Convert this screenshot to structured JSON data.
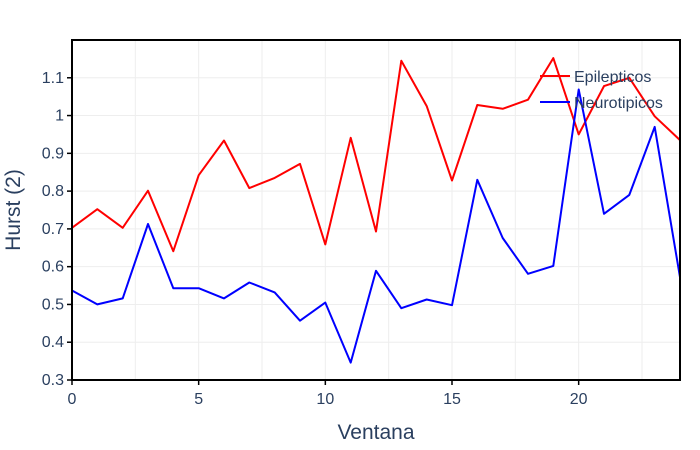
{
  "chart_data": {
    "type": "line",
    "title": "",
    "xlabel": "Ventana",
    "ylabel": "Hurst (2)",
    "xlim": [
      0,
      24
    ],
    "ylim": [
      0.3,
      1.2
    ],
    "xticks": [
      0,
      5,
      10,
      15,
      20
    ],
    "yticks": [
      0.3,
      0.4,
      0.5,
      0.6,
      0.7,
      0.8,
      0.9,
      1,
      1.1
    ],
    "grid": true,
    "legend_position": "top-right",
    "x": [
      0,
      1,
      2,
      3,
      4,
      5,
      6,
      7,
      8,
      9,
      10,
      11,
      12,
      13,
      14,
      15,
      16,
      17,
      18,
      19,
      20,
      21,
      22,
      23,
      24
    ],
    "series": [
      {
        "name": "Epilepticos",
        "color": "#ff0000",
        "values": [
          0.703,
          0.752,
          0.703,
          0.801,
          0.641,
          0.842,
          0.934,
          0.808,
          0.835,
          0.872,
          0.659,
          0.941,
          0.693,
          1.145,
          1.025,
          0.828,
          1.028,
          1.018,
          1.042,
          1.152,
          0.95,
          1.078,
          1.1,
          0.998,
          0.935
        ]
      },
      {
        "name": "Neurotipicos",
        "color": "#0000ff",
        "values": [
          0.537,
          0.5,
          0.516,
          0.713,
          0.543,
          0.543,
          0.516,
          0.558,
          0.532,
          0.457,
          0.505,
          0.346,
          0.589,
          0.49,
          0.513,
          0.498,
          0.83,
          0.676,
          0.581,
          0.602,
          1.069,
          0.74,
          0.79,
          0.97,
          0.572
        ]
      }
    ]
  }
}
